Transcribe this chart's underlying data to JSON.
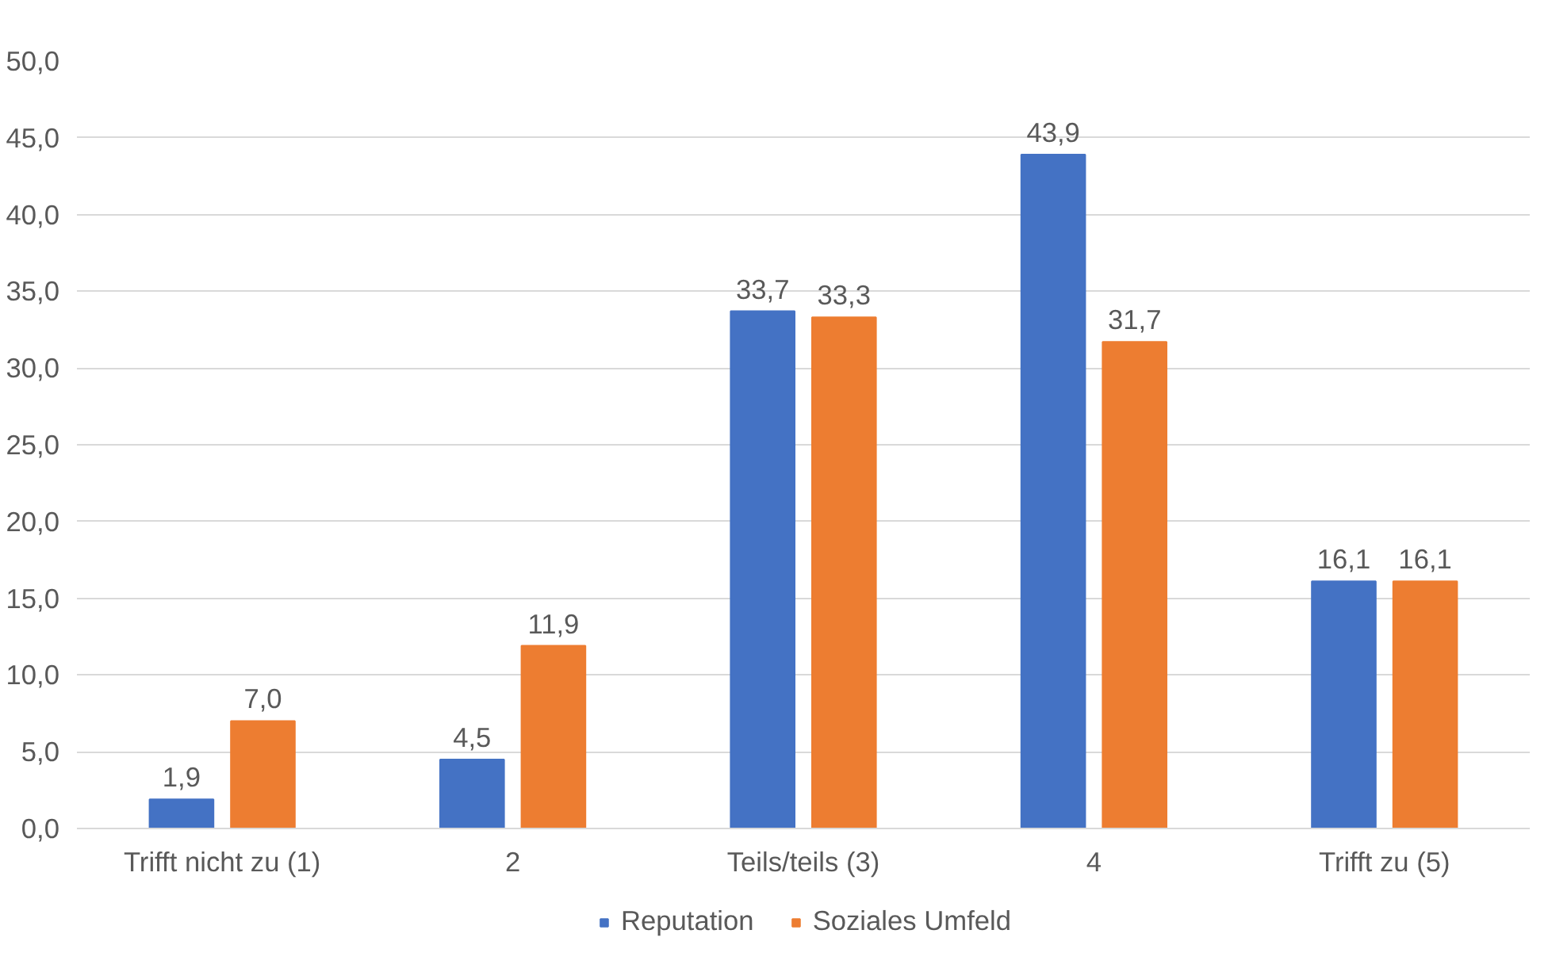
{
  "chart_data": {
    "type": "bar",
    "categories": [
      "Trifft nicht zu (1)",
      "2",
      "Teils/teils (3)",
      "4",
      "Trifft zu (5)"
    ],
    "series": [
      {
        "name": "Reputation",
        "color": "#4472c4",
        "values": [
          1.9,
          4.5,
          33.7,
          43.9,
          16.1
        ],
        "value_labels": [
          "1,9",
          "4,5",
          "33,7",
          "43,9",
          "16,1"
        ]
      },
      {
        "name": "Soziales Umfeld",
        "color": "#ed7d31",
        "values": [
          7.0,
          11.9,
          33.3,
          31.7,
          16.1
        ],
        "value_labels": [
          "7,0",
          "11,9",
          "33,3",
          "31,7",
          "16,1"
        ]
      }
    ],
    "ylim": [
      0,
      50
    ],
    "yticks": [
      {
        "value": 0,
        "label": "0,0"
      },
      {
        "value": 5,
        "label": "5,0"
      },
      {
        "value": 10,
        "label": "10,0"
      },
      {
        "value": 15,
        "label": "15,0"
      },
      {
        "value": 20,
        "label": "20,0"
      },
      {
        "value": 25,
        "label": "25,0"
      },
      {
        "value": 30,
        "label": "30,0"
      },
      {
        "value": 35,
        "label": "35,0"
      },
      {
        "value": 40,
        "label": "40,0"
      },
      {
        "value": 45,
        "label": "45,0"
      },
      {
        "value": 50,
        "label": "50,0"
      }
    ],
    "grid": "y",
    "legend": "bottom"
  }
}
